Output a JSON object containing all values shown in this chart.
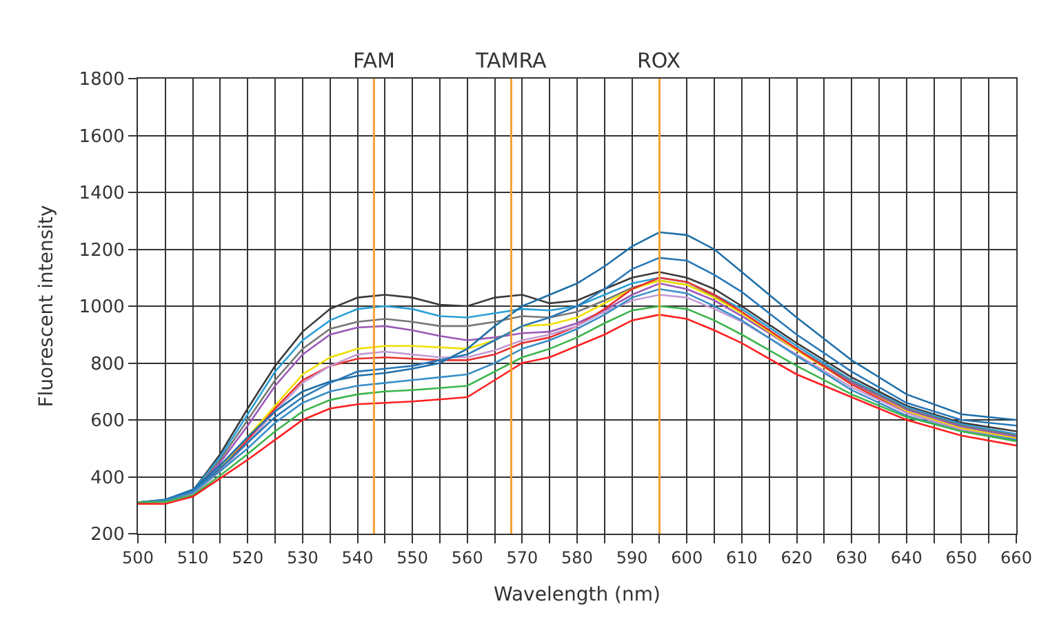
{
  "chart_data": {
    "type": "line",
    "xlabel": "Wavelength (nm)",
    "ylabel": "Fluorescent intensity",
    "x": [
      500,
      505,
      510,
      515,
      520,
      525,
      530,
      535,
      540,
      545,
      550,
      555,
      560,
      565,
      570,
      575,
      580,
      585,
      590,
      595,
      600,
      605,
      610,
      620,
      630,
      640,
      650,
      660
    ],
    "series": [
      {
        "color": "#3a3a3a",
        "values": [
          310,
          315,
          350,
          480,
          640,
          790,
          910,
          990,
          1030,
          1040,
          1030,
          1005,
          1000,
          1030,
          1040,
          1010,
          1020,
          1060,
          1100,
          1120,
          1100,
          1060,
          1000,
          870,
          750,
          650,
          590,
          560
        ]
      },
      {
        "color": "#2a9fd6",
        "values": [
          310,
          318,
          350,
          470,
          620,
          770,
          880,
          950,
          990,
          1000,
          990,
          965,
          960,
          975,
          990,
          985,
          1000,
          1040,
          1080,
          1100,
          1085,
          1040,
          990,
          860,
          740,
          645,
          585,
          550
        ]
      },
      {
        "color": "#777777",
        "values": [
          310,
          315,
          345,
          460,
          600,
          740,
          850,
          920,
          945,
          955,
          945,
          930,
          930,
          945,
          965,
          960,
          980,
          1020,
          1065,
          1090,
          1075,
          1035,
          980,
          850,
          735,
          640,
          580,
          545
        ]
      },
      {
        "color": "#9b59b6",
        "values": [
          310,
          315,
          345,
          450,
          580,
          720,
          830,
          900,
          925,
          930,
          915,
          895,
          880,
          890,
          905,
          910,
          940,
          985,
          1040,
          1080,
          1060,
          1020,
          965,
          845,
          730,
          635,
          575,
          540
        ]
      },
      {
        "color": "#f0e000",
        "values": [
          null,
          null,
          340,
          430,
          540,
          650,
          760,
          820,
          850,
          860,
          860,
          855,
          850,
          880,
          930,
          935,
          960,
          1010,
          1060,
          1090,
          1075,
          1030,
          975,
          845,
          725,
          630,
          570,
          535
        ]
      },
      {
        "color": "#e83030",
        "values": [
          310,
          312,
          340,
          425,
          530,
          640,
          740,
          790,
          815,
          820,
          815,
          810,
          810,
          830,
          870,
          890,
          930,
          990,
          1060,
          1100,
          1085,
          1040,
          980,
          850,
          725,
          625,
          565,
          530
        ]
      },
      {
        "color": "#c39bd3",
        "values": [
          310,
          312,
          338,
          420,
          520,
          630,
          730,
          790,
          830,
          840,
          830,
          820,
          820,
          845,
          880,
          900,
          930,
          980,
          1020,
          1040,
          1030,
          990,
          945,
          830,
          715,
          625,
          565,
          530
        ]
      },
      {
        "color": "#1f6fa8",
        "values": [
          310,
          320,
          355,
          440,
          540,
          630,
          700,
          735,
          755,
          765,
          780,
          800,
          850,
          930,
          1000,
          1040,
          1080,
          1140,
          1210,
          1260,
          1250,
          1200,
          1120,
          960,
          810,
          690,
          620,
          600
        ]
      },
      {
        "color": "#2878b8",
        "values": [
          310,
          318,
          350,
          430,
          520,
          610,
          680,
          730,
          770,
          780,
          790,
          810,
          830,
          880,
          930,
          960,
          1000,
          1060,
          1130,
          1170,
          1160,
          1110,
          1050,
          900,
          770,
          660,
          600,
          580
        ]
      },
      {
        "color": "#3a8fc8",
        "values": [
          310,
          315,
          345,
          420,
          500,
          590,
          660,
          700,
          720,
          730,
          740,
          750,
          760,
          800,
          850,
          880,
          920,
          970,
          1030,
          1060,
          1045,
          1000,
          950,
          825,
          705,
          615,
          560,
          530
        ]
      },
      {
        "color": "#3cb44b",
        "values": [
          310,
          312,
          335,
          405,
          480,
          560,
          630,
          670,
          690,
          700,
          705,
          712,
          720,
          770,
          820,
          850,
          890,
          940,
          985,
          1000,
          990,
          950,
          900,
          790,
          690,
          610,
          560,
          525
        ]
      },
      {
        "color": "#ff2020",
        "values": [
          305,
          305,
          330,
          395,
          460,
          530,
          600,
          640,
          655,
          660,
          665,
          672,
          680,
          740,
          800,
          820,
          860,
          900,
          950,
          970,
          955,
          915,
          870,
          760,
          680,
          600,
          545,
          510
        ]
      }
    ],
    "ref_lines": [
      {
        "axis": "x",
        "value": 543,
        "label": "FAM",
        "color": "#f5a030"
      },
      {
        "axis": "x",
        "value": 568,
        "label": "TAMRA",
        "color": "#f5a030"
      },
      {
        "axis": "x",
        "value": 595,
        "label": "ROX",
        "color": "#f5a030"
      }
    ],
    "xlim": [
      500,
      660
    ],
    "xticks": [
      500,
      {
        "value": 505,
        "label": null
      },
      510,
      {
        "value": 515,
        "label": null
      },
      520,
      {
        "value": 525,
        "label": null
      },
      530,
      {
        "value": 535,
        "label": null
      },
      540,
      {
        "value": 545,
        "label": null
      },
      550,
      {
        "value": 555,
        "label": null
      },
      560,
      {
        "value": 565,
        "label": null
      },
      570,
      {
        "value": 575,
        "label": null
      },
      580,
      {
        "value": 585,
        "label": null
      },
      590,
      {
        "value": 595,
        "label": null
      },
      600,
      {
        "value": 605,
        "label": null
      },
      610,
      {
        "value": 615,
        "label": null
      },
      620,
      {
        "value": 625,
        "label": null
      },
      630,
      {
        "value": 635,
        "label": null
      },
      640,
      {
        "value": 645,
        "label": null
      },
      650,
      {
        "value": 655,
        "label": null
      },
      660
    ],
    "ylim": [
      200,
      1800
    ],
    "yticks": [
      200,
      400,
      600,
      800,
      1000,
      1200,
      1400,
      1600,
      1800
    ],
    "grid": true,
    "marker": "none",
    "line_style": "solid"
  }
}
